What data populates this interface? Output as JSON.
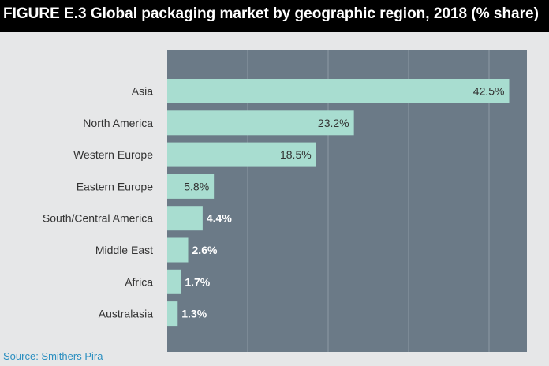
{
  "header": {
    "title": "FIGURE E.3 Global packaging market by geographic region, 2018 (% share)"
  },
  "footer": {
    "source": "Source: Smithers Pira"
  },
  "colors": {
    "title_background": "#000000",
    "page_background": "#e6e7e8",
    "plot_background": "#6b7a87",
    "bar": "#a8ddd0",
    "gridline": "#8d9aa5",
    "category_label": "#333333",
    "label_inside": "#333333",
    "label_outside": "#ffffff",
    "source_text": "#2b8fc0"
  },
  "chart_data": {
    "type": "bar",
    "orientation": "horizontal",
    "title": "FIGURE E.3 Global packaging market by geographic region, 2018 (% share)",
    "categories": [
      "Asia",
      "North America",
      "Western Europe",
      "Eastern Europe",
      "South/Central America",
      "Middle East",
      "Africa",
      "Australasia"
    ],
    "values": [
      42.5,
      23.2,
      18.5,
      5.8,
      4.4,
      2.6,
      1.7,
      1.3
    ],
    "value_labels": [
      "42.5%",
      "23.2%",
      "18.5%",
      "5.8%",
      "4.4%",
      "2.6%",
      "1.7%",
      "1.3%"
    ],
    "xlim": [
      0,
      45
    ],
    "x_gridlines": [
      10,
      20,
      30,
      40
    ],
    "grid": true,
    "legend": false
  }
}
